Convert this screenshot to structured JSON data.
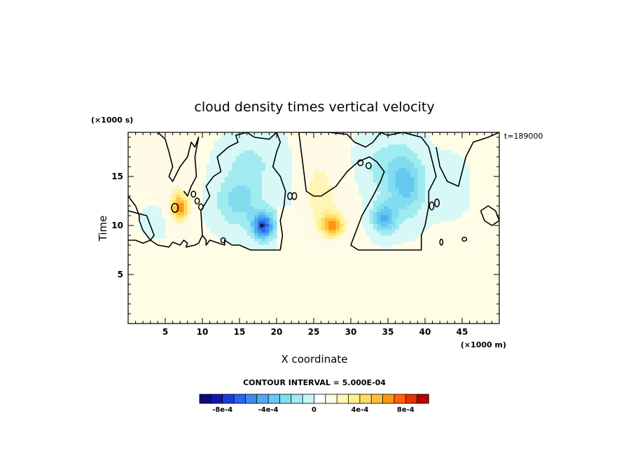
{
  "chart_data": {
    "type": "heatmap",
    "title": "cloud density times vertical velocity",
    "xlabel": "X coordinate",
    "ylabel": "Time",
    "x_units": "(×1000 m)",
    "y_units": "(×1000 s)",
    "time_stamp": "t=189000",
    "xlim": [
      0,
      50
    ],
    "ylim": [
      0,
      19.5
    ],
    "x_ticks": [
      5,
      10,
      15,
      20,
      25,
      30,
      35,
      40,
      45
    ],
    "y_ticks": [
      5,
      10,
      15
    ],
    "x_tick_labels": [
      "5",
      "10",
      "15",
      "20",
      "25",
      "30",
      "35",
      "40",
      "45"
    ],
    "y_tick_labels": [
      "5",
      "10",
      "15"
    ],
    "contour_interval_label": "CONTOUR INTERVAL = 5.000E-04",
    "colorbar": {
      "levels": [
        -0.001,
        -0.0009,
        -0.0008,
        -0.0007,
        -0.0006,
        -0.0005,
        -0.0004,
        -0.0003,
        -0.0002,
        -0.0001,
        0,
        0.0001,
        0.0002,
        0.0003,
        0.0004,
        0.0005,
        0.0006,
        0.0007,
        0.0008,
        0.0009,
        0.001
      ],
      "colors": [
        "#0a0a78",
        "#1414b4",
        "#1e3cdc",
        "#2864f0",
        "#3c8cf0",
        "#50aaf0",
        "#64c8f0",
        "#82dcf0",
        "#a0ebf0",
        "#c8f5f5",
        "#ffffff",
        "#fffae6",
        "#fff5b4",
        "#fff08c",
        "#ffdc64",
        "#ffbe3c",
        "#ff9614",
        "#ff6400",
        "#e63200",
        "#b40000"
      ],
      "tick_labels": [
        "-8e-4",
        "-4e-4",
        "0",
        "4e-4",
        "8e-4"
      ],
      "tick_values": [
        -0.0008,
        -0.0004,
        0,
        0.0004,
        0.0008
      ]
    },
    "background_color": "#fffde6",
    "features": [
      {
        "x": 3.0,
        "y": 16.5,
        "sx": 1.6,
        "sy": 2.2,
        "amp": 0.00018
      },
      {
        "x": 7.0,
        "y": 11.8,
        "sx": 1.3,
        "sy": 1.5,
        "amp": 0.00065
      },
      {
        "x": 6.5,
        "y": 15.0,
        "sx": 2.0,
        "sy": 3.0,
        "amp": 0.00015
      },
      {
        "x": 4.0,
        "y": 10.5,
        "sx": 2.0,
        "sy": 1.5,
        "amp": -5e-05
      },
      {
        "x": 15.0,
        "y": 12.5,
        "sx": 3.0,
        "sy": 2.5,
        "amp": -0.00025
      },
      {
        "x": 18.2,
        "y": 10.0,
        "sx": 1.4,
        "sy": 1.3,
        "amp": -0.0007
      },
      {
        "x": 16.5,
        "y": 16.5,
        "sx": 3.5,
        "sy": 2.5,
        "amp": -0.00012
      },
      {
        "x": 21.0,
        "y": 13.0,
        "sx": 1.5,
        "sy": 4.0,
        "amp": -8e-05
      },
      {
        "x": 27.5,
        "y": 10.0,
        "sx": 1.8,
        "sy": 1.3,
        "amp": 0.0006
      },
      {
        "x": 26.0,
        "y": 13.0,
        "sx": 3.0,
        "sy": 3.0,
        "amp": 0.00025
      },
      {
        "x": 25.5,
        "y": 17.0,
        "sx": 2.5,
        "sy": 2.5,
        "amp": 0.00012
      },
      {
        "x": 34.5,
        "y": 10.8,
        "sx": 1.6,
        "sy": 1.5,
        "amp": -0.0004
      },
      {
        "x": 37.5,
        "y": 14.0,
        "sx": 2.3,
        "sy": 3.0,
        "amp": -0.0003
      },
      {
        "x": 35.0,
        "y": 16.0,
        "sx": 3.5,
        "sy": 3.0,
        "amp": -0.00015
      },
      {
        "x": 43.0,
        "y": 14.0,
        "sx": 3.0,
        "sy": 3.0,
        "amp": -4e-05
      }
    ],
    "cloud_regions": [
      {
        "x": [
          0,
          3
        ],
        "y": [
          8.5,
          19.5
        ]
      },
      {
        "x": [
          3,
          10
        ],
        "y": [
          7.5,
          19.5
        ]
      },
      {
        "x": [
          10,
          20
        ],
        "y": [
          7.5,
          19.5
        ]
      },
      {
        "x": [
          20,
          23
        ],
        "y": [
          12,
          19.5
        ]
      },
      {
        "x": [
          23,
          31
        ],
        "y": [
          8,
          19.5
        ]
      },
      {
        "x": [
          31,
          41
        ],
        "y": [
          7.5,
          19.5
        ]
      },
      {
        "x": [
          41,
          46
        ],
        "y": [
          10,
          19.5
        ]
      },
      {
        "x": [
          47.5,
          50
        ],
        "y": [
          10,
          12
        ]
      }
    ],
    "cloud_edge_contours": [
      {
        "x": [
          10.0,
          9.8,
          11.0,
          10.5,
          11.5,
          12.5,
          12.0,
          13.5,
          14.8,
          14.5,
          16.0,
          17.0,
          19.0,
          20.0,
          20.5,
          20.0,
          19.5,
          20.5,
          21.2,
          21.0,
          20.5,
          20.8,
          20.5,
          19.5,
          17.5,
          16.5,
          15.0,
          14.0,
          13.0,
          13.0,
          11.0,
          10.5,
          10.5,
          10.0
        ],
        "y": [
          9.0,
          11.5,
          13.0,
          14.0,
          15.0,
          15.5,
          17.0,
          18.0,
          18.5,
          19.2,
          19.5,
          19.0,
          18.8,
          19.5,
          18.5,
          17.5,
          16.0,
          15.0,
          13.5,
          12.0,
          10.5,
          9.0,
          7.5,
          7.5,
          7.5,
          7.5,
          8.0,
          8.0,
          8.5,
          8.0,
          8.5,
          8.0,
          8.5,
          9.0
        ]
      },
      {
        "x": [
          23.0,
          25.0,
          27.0,
          29.5,
          30.5,
          32.0,
          33.0,
          34.0,
          35.0,
          37.0,
          38.5,
          39.5,
          40.5,
          41.5,
          40.5,
          40.5,
          40.0,
          39.5,
          39.5,
          38.0,
          36.0,
          33.0,
          31.0,
          30.0,
          31.5,
          33.0,
          34.0,
          34.5,
          33.5,
          32.5,
          31.0,
          29.5,
          28.0,
          27.0,
          26.0,
          25.0,
          24.0,
          23.0
        ],
        "y": [
          19.5,
          19.5,
          19.5,
          19.3,
          18.5,
          18.0,
          18.5,
          19.5,
          19.2,
          19.5,
          19.2,
          19.0,
          18.0,
          15.0,
          13.5,
          12.0,
          10.0,
          9.0,
          7.5,
          7.5,
          7.5,
          7.5,
          7.5,
          8.0,
          11.0,
          13.0,
          14.5,
          15.5,
          16.5,
          17.0,
          16.5,
          15.5,
          14.0,
          13.5,
          13.0,
          13.0,
          13.5,
          19.5
        ]
      },
      {
        "x": [
          41.5,
          42.0,
          43.0,
          44.5,
          45.0,
          45.5,
          46.5,
          48.5,
          50.0
        ],
        "y": [
          18.0,
          16.0,
          14.5,
          14.0,
          15.5,
          17.0,
          18.5,
          19.0,
          19.5
        ]
      },
      {
        "x": [
          0.0,
          1.0,
          2.0,
          3.0,
          4.0,
          5.5,
          6.0,
          7.0,
          7.5,
          8.0,
          7.8,
          9.0,
          9.5,
          10.0
        ],
        "y": [
          8.5,
          8.5,
          8.2,
          8.5,
          8.0,
          7.8,
          8.3,
          8.0,
          8.5,
          8.2,
          7.8,
          8.0,
          8.2,
          9.0
        ]
      },
      {
        "x": [
          0.0,
          2.5,
          3.0,
          3.5,
          3.0,
          2.5,
          2.0,
          1.5,
          1.5,
          1.0,
          0.5,
          0.0
        ],
        "y": [
          11.5,
          11.0,
          10.0,
          9.0,
          8.5,
          9.0,
          9.5,
          10.5,
          11.0,
          12.0,
          12.5,
          13.0
        ]
      },
      {
        "x": [
          4.0,
          5.0,
          5.5,
          6.0,
          5.5,
          6.0,
          7.0,
          8.0,
          8.5,
          9.0,
          9.5,
          9.0,
          9.2,
          8.5,
          8.0,
          7.5
        ],
        "y": [
          19.5,
          18.8,
          17.5,
          16.0,
          15.0,
          14.5,
          16.0,
          17.0,
          18.5,
          18.0,
          19.0,
          17.0,
          15.0,
          14.0,
          13.0,
          13.5
        ]
      },
      {
        "x": [
          47.5,
          48.5,
          49.5,
          50.0,
          49.0,
          48.0,
          47.5
        ],
        "y": [
          11.5,
          12.0,
          11.5,
          10.5,
          10.0,
          10.5,
          11.5
        ]
      }
    ],
    "small_contours": [
      {
        "x": 6.3,
        "y": 11.8,
        "rx": 0.45,
        "ry": 0.45
      },
      {
        "x": 8.8,
        "y": 13.2,
        "rx": 0.3,
        "ry": 0.3
      },
      {
        "x": 9.3,
        "y": 12.5,
        "rx": 0.3,
        "ry": 0.3
      },
      {
        "x": 9.8,
        "y": 11.9,
        "rx": 0.3,
        "ry": 0.3
      },
      {
        "x": 21.8,
        "y": 13.0,
        "rx": 0.3,
        "ry": 0.35
      },
      {
        "x": 22.4,
        "y": 13.0,
        "rx": 0.3,
        "ry": 0.35
      },
      {
        "x": 31.3,
        "y": 16.4,
        "rx": 0.35,
        "ry": 0.3
      },
      {
        "x": 32.4,
        "y": 16.1,
        "rx": 0.35,
        "ry": 0.3
      },
      {
        "x": 40.9,
        "y": 12.0,
        "rx": 0.3,
        "ry": 0.4
      },
      {
        "x": 41.6,
        "y": 12.3,
        "rx": 0.3,
        "ry": 0.4
      },
      {
        "x": 45.3,
        "y": 8.6,
        "rx": 0.3,
        "ry": 0.2
      },
      {
        "x": 42.2,
        "y": 8.3,
        "rx": 0.2,
        "ry": 0.3
      },
      {
        "x": 12.8,
        "y": 8.5,
        "rx": 0.3,
        "ry": 0.25
      },
      {
        "x": 18.0,
        "y": 10.0,
        "rx": 0.15,
        "ry": 0.15
      }
    ]
  }
}
